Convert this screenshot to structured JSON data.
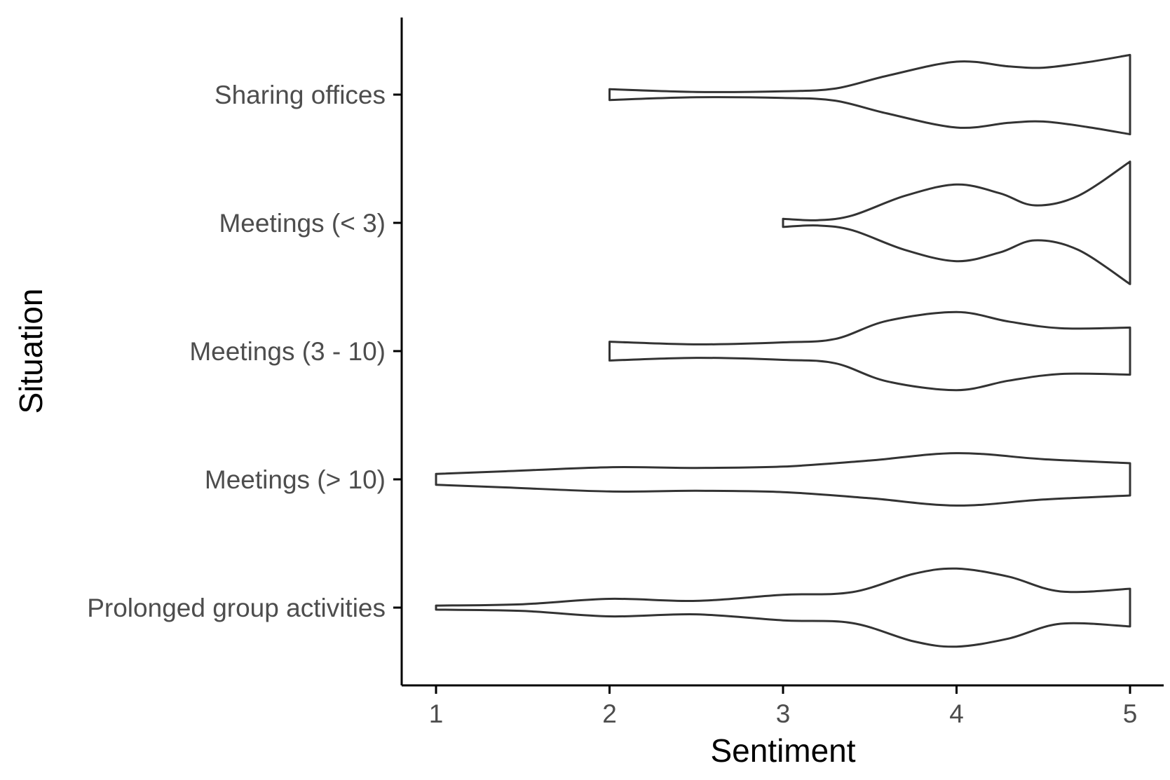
{
  "chart_data": {
    "type": "violin",
    "orientation": "horizontal",
    "xlabel": "Sentiment",
    "ylabel": "Situation",
    "xlim": [
      0.8,
      5.2
    ],
    "x_ticks": [
      1,
      2,
      3,
      4,
      5
    ],
    "categories": [
      "Sharing offices",
      "Meetings (< 3)",
      "Meetings (3 - 10)",
      "Meetings (> 10)",
      "Prolonged group activities"
    ],
    "series": [
      {
        "category": "Sharing offices",
        "profile": [
          [
            2.0,
            0.08
          ],
          [
            2.5,
            0.04
          ],
          [
            3.0,
            0.05
          ],
          [
            3.3,
            0.09
          ],
          [
            3.6,
            0.28
          ],
          [
            4.0,
            0.49
          ],
          [
            4.3,
            0.42
          ],
          [
            4.5,
            0.4
          ],
          [
            4.75,
            0.48
          ],
          [
            5.0,
            0.59
          ]
        ]
      },
      {
        "category": "Meetings (< 3)",
        "profile": [
          [
            3.0,
            0.06
          ],
          [
            3.2,
            0.04
          ],
          [
            3.4,
            0.11
          ],
          [
            3.7,
            0.4
          ],
          [
            4.0,
            0.57
          ],
          [
            4.25,
            0.44
          ],
          [
            4.45,
            0.26
          ],
          [
            4.7,
            0.4
          ],
          [
            5.0,
            0.91
          ]
        ]
      },
      {
        "category": "Meetings (3 - 10)",
        "profile": [
          [
            2.0,
            0.14
          ],
          [
            2.5,
            0.1
          ],
          [
            3.0,
            0.13
          ],
          [
            3.3,
            0.18
          ],
          [
            3.6,
            0.45
          ],
          [
            4.0,
            0.58
          ],
          [
            4.3,
            0.44
          ],
          [
            4.6,
            0.34
          ],
          [
            5.0,
            0.35
          ]
        ]
      },
      {
        "category": "Meetings (> 10)",
        "profile": [
          [
            1.0,
            0.08
          ],
          [
            1.4,
            0.12
          ],
          [
            2.0,
            0.18
          ],
          [
            2.5,
            0.17
          ],
          [
            3.0,
            0.19
          ],
          [
            3.5,
            0.28
          ],
          [
            4.0,
            0.39
          ],
          [
            4.5,
            0.3
          ],
          [
            5.0,
            0.24
          ]
        ]
      },
      {
        "category": "Prolonged group activities",
        "profile": [
          [
            1.0,
            0.03
          ],
          [
            1.5,
            0.05
          ],
          [
            2.0,
            0.13
          ],
          [
            2.5,
            0.1
          ],
          [
            3.0,
            0.19
          ],
          [
            3.4,
            0.23
          ],
          [
            3.75,
            0.5
          ],
          [
            4.0,
            0.58
          ],
          [
            4.3,
            0.46
          ],
          [
            4.6,
            0.24
          ],
          [
            5.0,
            0.28
          ]
        ]
      }
    ]
  }
}
